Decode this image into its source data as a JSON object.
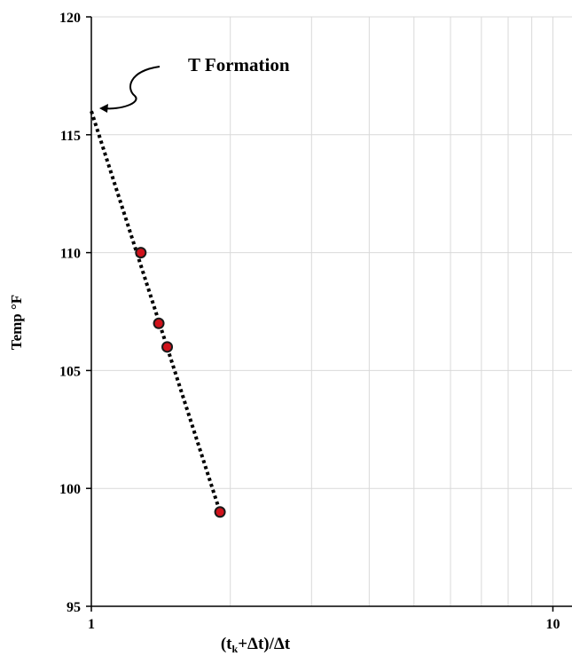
{
  "chart_data": {
    "type": "scatter",
    "x_scale": "log",
    "xlim": [
      1,
      11
    ],
    "ylim": [
      95,
      120
    ],
    "x_ticks": [
      "1",
      "10"
    ],
    "y_ticks": [
      "95",
      "100",
      "105",
      "110",
      "115",
      "120"
    ],
    "xlabel": {
      "prefix": "(t",
      "sub": "k",
      "suffix": "+Δt)/Δt"
    },
    "ylabel": "Temp °F",
    "grid": true,
    "points": [
      {
        "x": 1.28,
        "y": 110
      },
      {
        "x": 1.4,
        "y": 107
      },
      {
        "x": 1.46,
        "y": 106
      },
      {
        "x": 1.9,
        "y": 99
      }
    ],
    "trendline": {
      "style": "dotted",
      "from": {
        "x": 1.0,
        "y": 116
      },
      "to": {
        "x": 1.9,
        "y": 99
      }
    },
    "annotation": {
      "text": "T Formation",
      "target": {
        "x": 1.0,
        "y": 116
      }
    },
    "colors": {
      "point_fill": "#d0121b",
      "point_edge": "#1a1a1a",
      "line": "#000000",
      "grid": "#d9d9d9"
    }
  }
}
